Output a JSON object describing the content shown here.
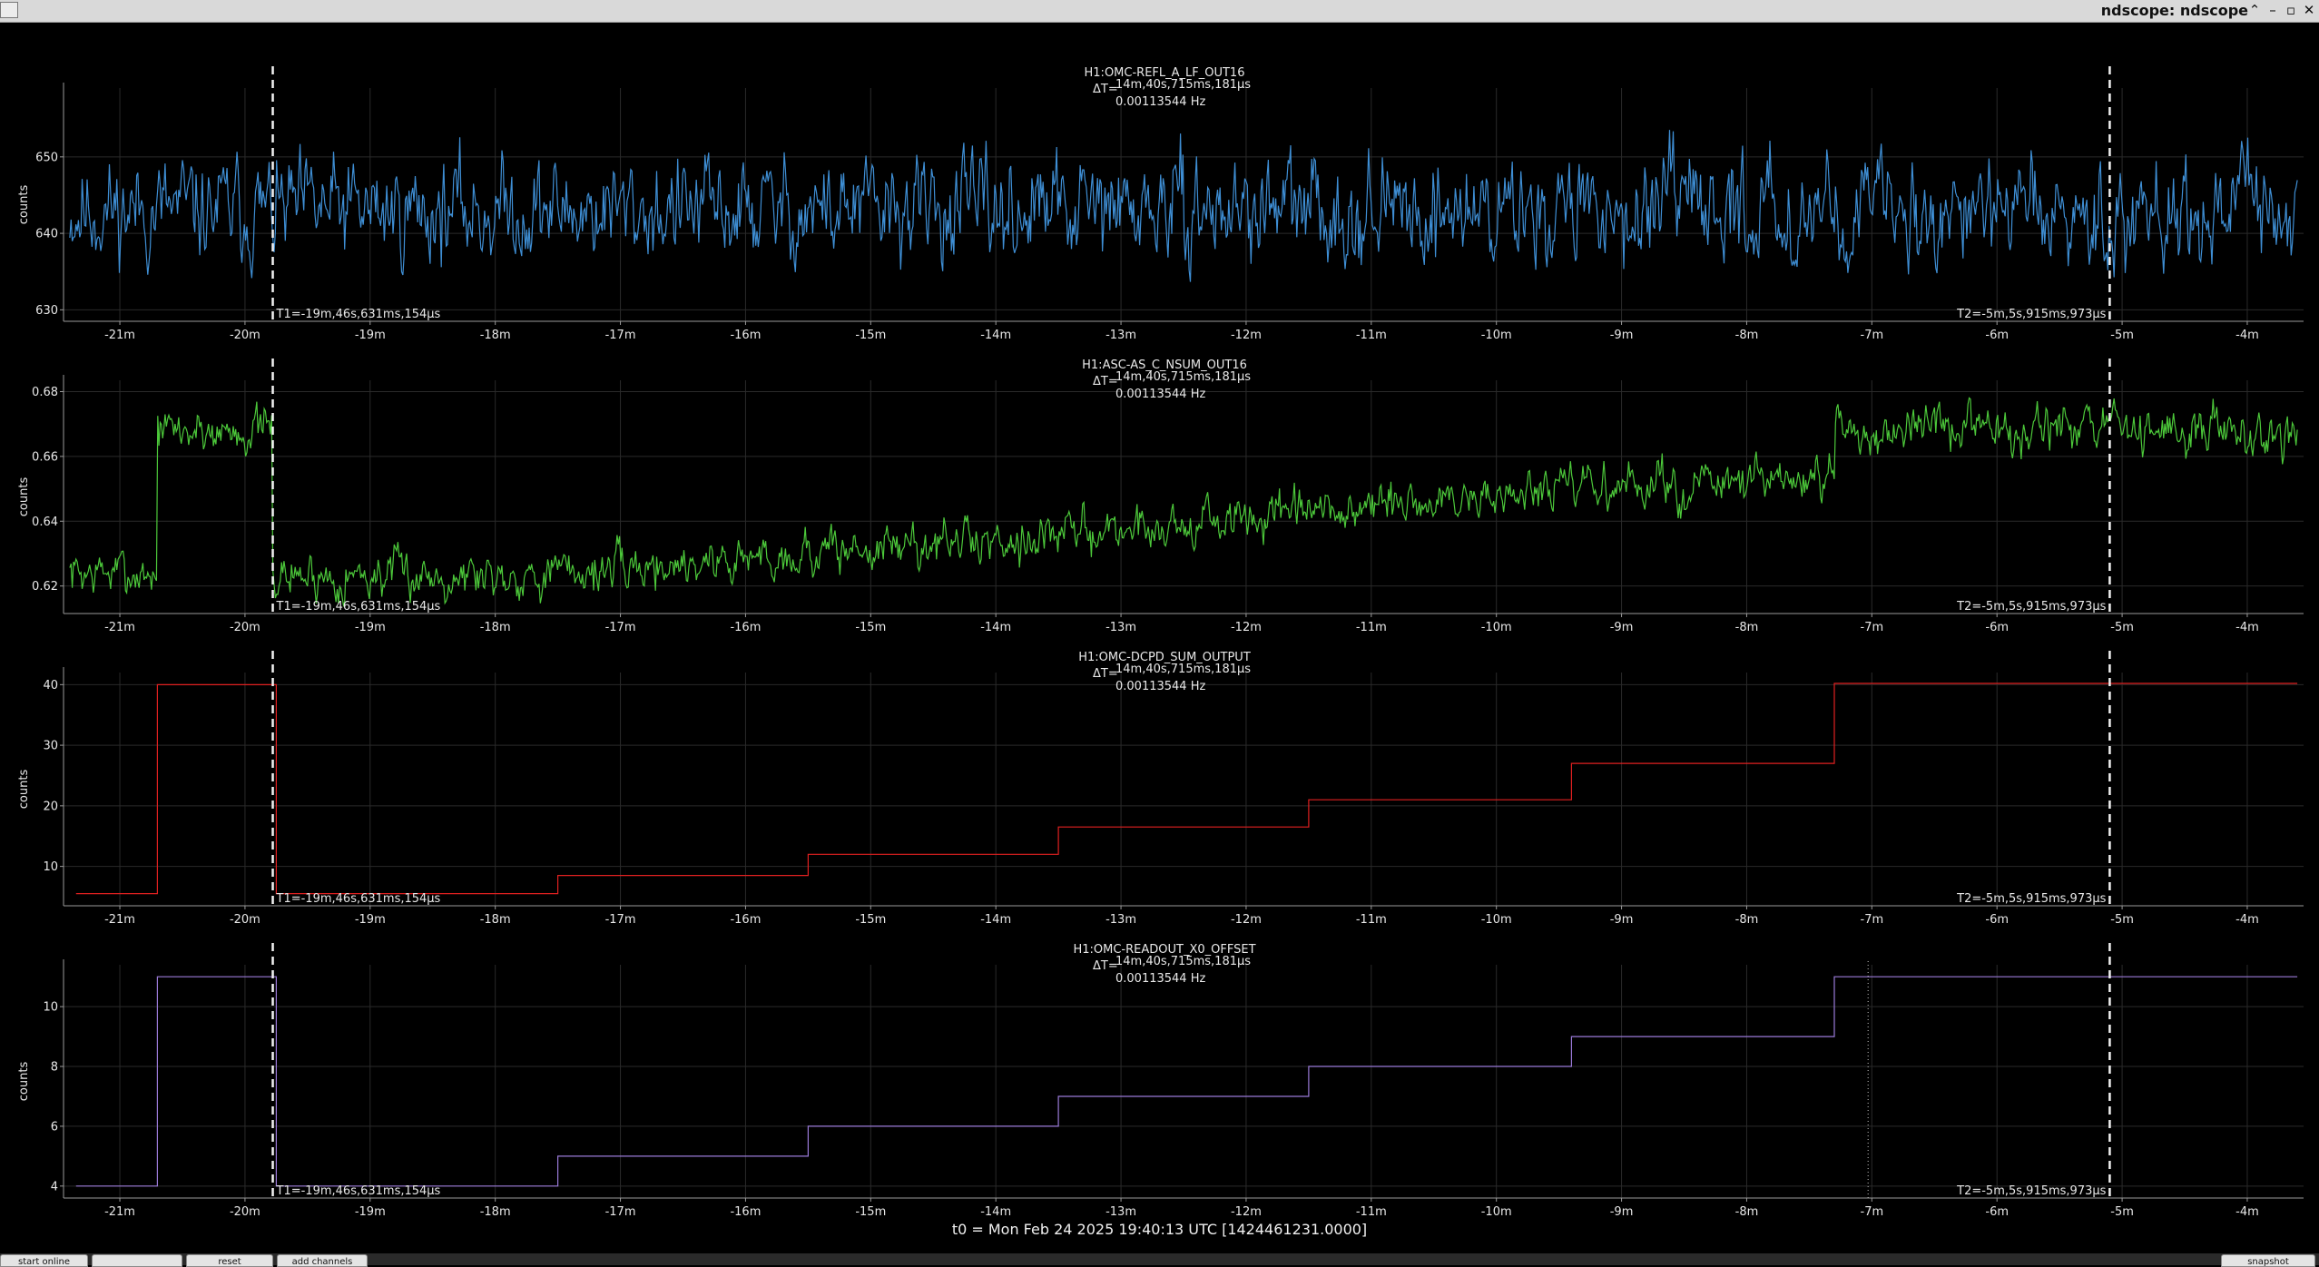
{
  "window": {
    "title": "ndscope: ndscope",
    "buttons": [
      "⌃",
      "–",
      "▫",
      "✕"
    ]
  },
  "t0_label": "t0 = Mon Feb 24 2025 19:40:13 UTC [1424461231.0000]",
  "bottom_buttons": [
    "start online",
    "",
    "reset",
    "add channels",
    "snapshot"
  ],
  "cursors": {
    "t1": -19.778,
    "t2": -5.099,
    "t1_label": "T1=-19m,46s,631ms,154μs",
    "t2_label": "T2=-5m,5s,915ms,973μs",
    "delta_label": "ΔT=",
    "delta_time": "14m,40s,715ms,181μs",
    "delta_freq": "0.00113544 Hz"
  },
  "chart_data": [
    {
      "type": "line",
      "title": "H1:OMC-REFL_A_LF_OUT16",
      "ylabel": "counts",
      "xlim": [
        -21.45,
        -3.55
      ],
      "ylim": [
        628.5,
        659
      ],
      "yticks": [
        630,
        640,
        650
      ],
      "xticks": [
        -21,
        -20,
        -19,
        -18,
        -17,
        -16,
        -15,
        -14,
        -13,
        -12,
        -11,
        -10,
        -9,
        -8,
        -7,
        -6,
        -5,
        -4
      ],
      "xtick_labels": [
        "-21m",
        "-20m",
        "-19m",
        "-18m",
        "-17m",
        "-16m",
        "-15m",
        "-14m",
        "-13m",
        "-12m",
        "-11m",
        "-10m",
        "-9m",
        "-8m",
        "-7m",
        "-6m",
        "-5m",
        "-4m"
      ],
      "grid": true,
      "color": "#3e8ed4",
      "noise": {
        "n": 1800,
        "amp": 4.2,
        "seed": 11
      },
      "series": [
        {
          "x": [
            -21.4,
            -3.6
          ],
          "y": [
            643,
            643
          ]
        }
      ]
    },
    {
      "type": "line",
      "title": "H1:ASC-AS_C_NSUM_OUT16",
      "ylabel": "counts",
      "xlim": [
        -21.45,
        -3.55
      ],
      "ylim": [
        0.6115,
        0.6835
      ],
      "yticks": [
        0.62,
        0.64,
        0.66,
        0.68
      ],
      "xticks": [
        -21,
        -20,
        -19,
        -18,
        -17,
        -16,
        -15,
        -14,
        -13,
        -12,
        -11,
        -10,
        -9,
        -8,
        -7,
        -6,
        -5,
        -4
      ],
      "xtick_labels": [
        "-21m",
        "-20m",
        "-19m",
        "-18m",
        "-17m",
        "-16m",
        "-15m",
        "-14m",
        "-13m",
        "-12m",
        "-11m",
        "-10m",
        "-9m",
        "-8m",
        "-7m",
        "-6m",
        "-5m",
        "-4m"
      ],
      "grid": true,
      "color": "#4cc83a",
      "noise": {
        "n": 1800,
        "amp": 0.0045,
        "seed": 7
      },
      "series": [
        {
          "x": [
            -21.4,
            -20.7,
            -20.7,
            -19.78,
            -19.78,
            -17.5,
            -15.5,
            -13.5,
            -11.5,
            -9.4,
            -7.3,
            -7.3,
            -3.6
          ],
          "y": [
            0.624,
            0.624,
            0.668,
            0.668,
            0.623,
            0.624,
            0.63,
            0.636,
            0.642,
            0.65,
            0.652,
            0.668,
            0.668
          ]
        }
      ]
    },
    {
      "type": "line",
      "title": "H1:OMC-DCPD_SUM_OUTPUT",
      "ylabel": "counts",
      "xlim": [
        -21.45,
        -3.55
      ],
      "ylim": [
        3.5,
        42
      ],
      "yticks": [
        10,
        20,
        30,
        40
      ],
      "xticks": [
        -21,
        -20,
        -19,
        -18,
        -17,
        -16,
        -15,
        -14,
        -13,
        -12,
        -11,
        -10,
        -9,
        -8,
        -7,
        -6,
        -5,
        -4
      ],
      "xtick_labels": [
        "-21m",
        "-20m",
        "-19m",
        "-18m",
        "-17m",
        "-16m",
        "-15m",
        "-14m",
        "-13m",
        "-12m",
        "-11m",
        "-10m",
        "-9m",
        "-8m",
        "-7m",
        "-6m",
        "-5m",
        "-4m"
      ],
      "grid": true,
      "color": "#e02020",
      "step": true,
      "series": [
        {
          "x": [
            -21.35,
            -20.7,
            -20.7,
            -19.75,
            -19.75,
            -17.5,
            -17.5,
            -15.5,
            -15.5,
            -13.5,
            -13.5,
            -11.5,
            -11.5,
            -9.4,
            -9.4,
            -7.3,
            -7.3,
            -3.6
          ],
          "y": [
            5.5,
            5.5,
            40,
            40,
            5.5,
            5.5,
            8.5,
            8.5,
            12,
            12,
            16.5,
            16.5,
            21,
            21,
            27,
            27,
            40.2,
            40.2
          ]
        }
      ]
    },
    {
      "type": "line",
      "title": "H1:OMC-READOUT_X0_OFFSET",
      "ylabel": "counts",
      "xlim": [
        -21.45,
        -3.55
      ],
      "ylim": [
        3.6,
        11.4
      ],
      "yticks": [
        4,
        6,
        8,
        10
      ],
      "xticks": [
        -21,
        -20,
        -19,
        -18,
        -17,
        -16,
        -15,
        -14,
        -13,
        -12,
        -11,
        -10,
        -9,
        -8,
        -7,
        -6,
        -5,
        -4
      ],
      "xtick_labels": [
        "-21m",
        "-20m",
        "-19m",
        "-18m",
        "-17m",
        "-16m",
        "-15m",
        "-14m",
        "-13m",
        "-12m",
        "-11m",
        "-10m",
        "-9m",
        "-8m",
        "-7m",
        "-6m",
        "-5m",
        "-4m"
      ],
      "grid": true,
      "color": "#9a7ad8",
      "step": true,
      "series": [
        {
          "x": [
            -21.35,
            -20.7,
            -20.7,
            -19.75,
            -19.75,
            -17.5,
            -17.5,
            -15.5,
            -15.5,
            -13.5,
            -13.5,
            -11.5,
            -11.5,
            -9.4,
            -9.4,
            -7.3,
            -7.3,
            -3.6
          ],
          "y": [
            4,
            4,
            11,
            11,
            4,
            4,
            5,
            5,
            6,
            6,
            7,
            7,
            8,
            8,
            9,
            9,
            11,
            11
          ]
        }
      ],
      "extra_dotted_x": -7.03
    }
  ]
}
